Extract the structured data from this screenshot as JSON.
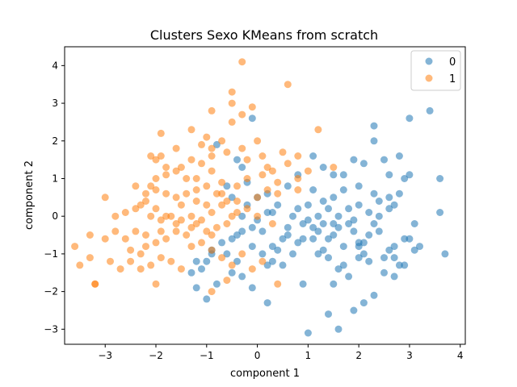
{
  "chart_data": {
    "type": "scatter",
    "title": "Clusters Sexo KMeans from scratch",
    "xlabel": "component 1",
    "ylabel": "component 2",
    "xlim": [
      -3.8,
      4.1
    ],
    "ylim": [
      -3.4,
      4.5
    ],
    "xticks": [
      -3,
      -2,
      -1,
      0,
      1,
      2,
      3,
      4
    ],
    "yticks": [
      -3,
      -2,
      -1,
      0,
      1,
      2,
      3,
      4
    ],
    "xtick_labels": [
      "−3",
      "−2",
      "−1",
      "0",
      "1",
      "2",
      "3",
      "4"
    ],
    "ytick_labels": [
      "−3",
      "−2",
      "−1",
      "0",
      "1",
      "2",
      "3",
      "4"
    ],
    "grid": false,
    "legend_position": "top-right",
    "series": [
      {
        "name": "0",
        "color": "#1f77b4",
        "points": [
          [
            -0.8,
            1.9
          ],
          [
            -0.4,
            1.5
          ],
          [
            -0.3,
            1.3
          ],
          [
            -0.2,
            0.9
          ],
          [
            -0.1,
            2.6
          ],
          [
            -0.6,
            0.8
          ],
          [
            -0.5,
            0.5
          ],
          [
            -0.3,
            0.0
          ],
          [
            0.0,
            -0.1
          ],
          [
            0.2,
            0.1
          ],
          [
            0.3,
            0.1
          ],
          [
            0.6,
            -0.3
          ],
          [
            0.8,
            1.1
          ],
          [
            1.1,
            1.6
          ],
          [
            1.3,
            1.3
          ],
          [
            1.5,
            1.1
          ],
          [
            1.7,
            1.1
          ],
          [
            1.9,
            1.5
          ],
          [
            2.1,
            1.4
          ],
          [
            2.3,
            2.0
          ],
          [
            2.3,
            2.4
          ],
          [
            2.5,
            1.5
          ],
          [
            2.6,
            1.1
          ],
          [
            2.8,
            1.6
          ],
          [
            2.9,
            1.0
          ],
          [
            3.0,
            1.1
          ],
          [
            3.0,
            2.6
          ],
          [
            3.4,
            2.8
          ],
          [
            3.6,
            1.0
          ],
          [
            3.6,
            0.1
          ],
          [
            3.7,
            -1.0
          ],
          [
            3.1,
            -0.2
          ],
          [
            3.2,
            -0.8
          ],
          [
            3.0,
            -0.6
          ],
          [
            2.9,
            -0.6
          ],
          [
            2.8,
            -1.3
          ],
          [
            2.7,
            -1.1
          ],
          [
            2.7,
            -0.8
          ],
          [
            2.6,
            -0.9
          ],
          [
            2.5,
            -1.1
          ],
          [
            2.4,
            -0.4
          ],
          [
            2.3,
            -0.2
          ],
          [
            2.2,
            -0.5
          ],
          [
            2.1,
            -0.7
          ],
          [
            2.0,
            -0.8
          ],
          [
            1.9,
            -0.4
          ],
          [
            1.8,
            -0.2
          ],
          [
            1.6,
            -0.3
          ],
          [
            1.5,
            -0.5
          ],
          [
            1.4,
            -0.6
          ],
          [
            1.3,
            -0.2
          ],
          [
            1.2,
            -0.4
          ],
          [
            1.1,
            -0.3
          ],
          [
            1.0,
            -0.1
          ],
          [
            0.9,
            -0.6
          ],
          [
            0.8,
            -0.7
          ],
          [
            0.6,
            -0.5
          ],
          [
            0.5,
            -0.6
          ],
          [
            0.4,
            -0.9
          ],
          [
            0.3,
            -1.2
          ],
          [
            0.2,
            -1.3
          ],
          [
            0.1,
            -1.0
          ],
          [
            -0.1,
            -0.8
          ],
          [
            -0.3,
            -0.4
          ],
          [
            -0.4,
            -0.5
          ],
          [
            -0.5,
            -0.6
          ],
          [
            -0.7,
            -0.7
          ],
          [
            -0.9,
            -1.0
          ],
          [
            -1.0,
            -1.2
          ],
          [
            -1.2,
            -1.2
          ],
          [
            -1.3,
            -1.5
          ],
          [
            -1.2,
            -1.9
          ],
          [
            -1.0,
            -2.2
          ],
          [
            -0.8,
            -1.8
          ],
          [
            -0.5,
            -1.5
          ],
          [
            -0.3,
            -1.6
          ],
          [
            -0.1,
            -1.9
          ],
          [
            0.2,
            -2.3
          ],
          [
            0.5,
            -1.3
          ],
          [
            0.9,
            -1.8
          ],
          [
            1.0,
            -3.1
          ],
          [
            1.4,
            -2.6
          ],
          [
            1.6,
            -3.0
          ],
          [
            1.9,
            -2.5
          ],
          [
            2.1,
            -2.3
          ],
          [
            2.3,
            -2.1
          ],
          [
            1.5,
            -1.8
          ],
          [
            1.7,
            -1.3
          ],
          [
            2.0,
            -1.1
          ],
          [
            2.2,
            -1.2
          ],
          [
            2.5,
            -1.5
          ],
          [
            2.7,
            -1.6
          ],
          [
            2.9,
            -1.3
          ],
          [
            3.1,
            -0.9
          ],
          [
            1.2,
            -1.0
          ],
          [
            1.4,
            -1.1
          ],
          [
            1.6,
            -1.4
          ],
          [
            1.8,
            -1.6
          ],
          [
            2.0,
            -0.7
          ],
          [
            2.4,
            0.4
          ],
          [
            2.6,
            0.5
          ],
          [
            2.7,
            0.3
          ],
          [
            2.3,
            0.6
          ],
          [
            2.0,
            0.8
          ],
          [
            1.7,
            0.7
          ],
          [
            1.5,
            0.5
          ],
          [
            1.3,
            0.4
          ],
          [
            1.1,
            0.7
          ],
          [
            1.0,
            0.3
          ],
          [
            0.8,
            0.2
          ],
          [
            1.2,
            0.0
          ],
          [
            1.4,
            0.2
          ],
          [
            1.6,
            0.0
          ],
          [
            1.8,
            0.2
          ],
          [
            2.0,
            0.3
          ],
          [
            2.2,
            0.1
          ],
          [
            2.4,
            0.0
          ],
          [
            2.6,
            0.2
          ],
          [
            2.8,
            0.6
          ],
          [
            1.9,
            -0.1
          ],
          [
            0.0,
            0.5
          ],
          [
            0.2,
            0.6
          ],
          [
            0.4,
            0.3
          ],
          [
            0.6,
            0.8
          ],
          [
            -0.2,
            0.3
          ],
          [
            -0.1,
            -0.3
          ],
          [
            0.1,
            -0.4
          ],
          [
            0.3,
            -0.8
          ],
          [
            -0.4,
            -1.2
          ],
          [
            -0.6,
            -1.0
          ],
          [
            -1.1,
            -1.4
          ],
          [
            -0.9,
            -0.9
          ],
          [
            0.7,
            -1.0
          ],
          [
            1.3,
            -0.9
          ],
          [
            1.1,
            -0.6
          ],
          [
            0.9,
            -0.2
          ],
          [
            0.7,
            0.0
          ],
          [
            1.5,
            -0.2
          ],
          [
            1.7,
            -0.8
          ],
          [
            2.1,
            -1.0
          ]
        ]
      },
      {
        "name": "1",
        "color": "#ff7f0e",
        "points": [
          [
            -0.3,
            4.1
          ],
          [
            0.6,
            3.5
          ],
          [
            -0.5,
            3.3
          ],
          [
            -0.5,
            3.0
          ],
          [
            -0.3,
            2.7
          ],
          [
            -0.1,
            2.9
          ],
          [
            -0.9,
            2.8
          ],
          [
            -0.5,
            2.5
          ],
          [
            -1.3,
            2.3
          ],
          [
            -1.9,
            2.2
          ],
          [
            -1.0,
            2.1
          ],
          [
            -0.7,
            2.0
          ],
          [
            -0.9,
            1.8
          ],
          [
            -1.1,
            1.9
          ],
          [
            -1.6,
            1.8
          ],
          [
            -2.1,
            1.6
          ],
          [
            -1.9,
            1.6
          ],
          [
            -2.0,
            1.5
          ],
          [
            -1.8,
            1.3
          ],
          [
            -1.5,
            1.3
          ],
          [
            -1.3,
            1.5
          ],
          [
            -1.1,
            1.4
          ],
          [
            -0.9,
            1.6
          ],
          [
            -0.6,
            1.7
          ],
          [
            -0.3,
            1.8
          ],
          [
            0.0,
            2.0
          ],
          [
            0.1,
            1.6
          ],
          [
            0.5,
            1.7
          ],
          [
            0.8,
            1.6
          ],
          [
            1.2,
            2.3
          ],
          [
            1.5,
            1.3
          ],
          [
            0.8,
            1.0
          ],
          [
            0.3,
            1.2
          ],
          [
            0.1,
            1.1
          ],
          [
            -0.2,
            1.0
          ],
          [
            -0.4,
            0.8
          ],
          [
            -0.7,
            0.9
          ],
          [
            -0.9,
            1.2
          ],
          [
            -1.2,
            1.0
          ],
          [
            -1.4,
            1.0
          ],
          [
            -1.6,
            1.2
          ],
          [
            -1.8,
            1.1
          ],
          [
            -2.0,
            1.0
          ],
          [
            -2.1,
            0.8
          ],
          [
            -2.2,
            0.6
          ],
          [
            -2.4,
            0.8
          ],
          [
            -2.0,
            0.7
          ],
          [
            -1.8,
            0.6
          ],
          [
            -1.6,
            0.5
          ],
          [
            -1.4,
            0.6
          ],
          [
            -1.2,
            0.7
          ],
          [
            -1.0,
            0.8
          ],
          [
            -0.8,
            0.6
          ],
          [
            -0.6,
            0.4
          ],
          [
            -0.4,
            0.4
          ],
          [
            -0.2,
            0.2
          ],
          [
            0.0,
            0.5
          ],
          [
            0.2,
            0.7
          ],
          [
            0.4,
            0.9
          ],
          [
            0.8,
            0.7
          ],
          [
            -2.4,
            0.2
          ],
          [
            -2.6,
            0.1
          ],
          [
            -2.8,
            0.0
          ],
          [
            -3.0,
            0.5
          ],
          [
            -2.3,
            0.3
          ],
          [
            -2.1,
            0.0
          ],
          [
            -1.9,
            -0.1
          ],
          [
            -1.7,
            0.0
          ],
          [
            -1.5,
            -0.1
          ],
          [
            -1.3,
            0.0
          ],
          [
            -1.1,
            -0.1
          ],
          [
            -0.9,
            0.1
          ],
          [
            -0.7,
            0.3
          ],
          [
            -0.5,
            0.0
          ],
          [
            -0.8,
            -0.3
          ],
          [
            -1.0,
            -0.4
          ],
          [
            -1.2,
            -0.2
          ],
          [
            -1.4,
            -0.5
          ],
          [
            -1.6,
            -0.4
          ],
          [
            -1.8,
            -0.6
          ],
          [
            -2.0,
            -0.7
          ],
          [
            -2.2,
            -0.5
          ],
          [
            -2.4,
            -0.4
          ],
          [
            -2.6,
            -0.6
          ],
          [
            -2.8,
            -0.4
          ],
          [
            -3.0,
            -0.6
          ],
          [
            -3.3,
            -0.5
          ],
          [
            -3.6,
            -0.8
          ],
          [
            -3.5,
            -1.3
          ],
          [
            -3.3,
            -1.1
          ],
          [
            -3.2,
            -1.8
          ],
          [
            -3.2,
            -1.8
          ],
          [
            -2.9,
            -1.2
          ],
          [
            -2.7,
            -1.4
          ],
          [
            -2.5,
            -1.2
          ],
          [
            -2.3,
            -1.0
          ],
          [
            -2.1,
            -1.3
          ],
          [
            -1.9,
            -1.1
          ],
          [
            -1.7,
            -1.2
          ],
          [
            -1.5,
            -1.4
          ],
          [
            -1.3,
            -0.8
          ],
          [
            -1.1,
            -0.7
          ],
          [
            -0.9,
            -0.9
          ],
          [
            -0.7,
            -1.1
          ],
          [
            -0.5,
            -1.3
          ],
          [
            -0.3,
            -1.0
          ],
          [
            -0.1,
            -1.4
          ],
          [
            0.1,
            -1.2
          ],
          [
            0.4,
            -1.8
          ],
          [
            -0.6,
            -1.7
          ],
          [
            -0.9,
            -2.0
          ],
          [
            -2.0,
            -1.8
          ],
          [
            -2.3,
            -1.4
          ],
          [
            -2.5,
            -0.9
          ],
          [
            -2.2,
            -0.8
          ],
          [
            -1.9,
            -0.4
          ],
          [
            -1.6,
            -0.2
          ],
          [
            -1.3,
            -0.3
          ],
          [
            -0.9,
            -0.5
          ],
          [
            -0.6,
            -0.2
          ],
          [
            -1.5,
            0.3
          ],
          [
            -1.2,
            0.4
          ],
          [
            -1.0,
            0.3
          ],
          [
            -0.7,
            0.6
          ],
          [
            -0.4,
            0.1
          ],
          [
            0.3,
            -0.2
          ],
          [
            0.0,
            0.0
          ],
          [
            -2.2,
            0.4
          ],
          [
            -2.0,
            0.2
          ],
          [
            -1.8,
            0.0
          ],
          [
            1.0,
            1.2
          ],
          [
            0.6,
            1.4
          ],
          [
            0.2,
            1.3
          ],
          [
            -0.2,
            1.5
          ],
          [
            0.4,
            0.6
          ]
        ]
      }
    ]
  }
}
